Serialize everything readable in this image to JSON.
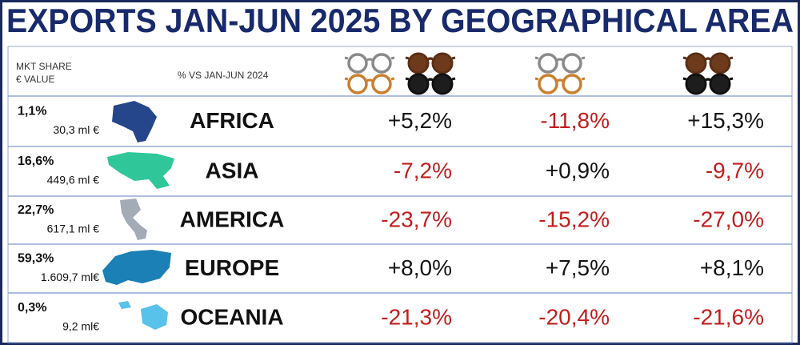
{
  "header": {
    "title": "EXPORTS JAN-JUN 2025 BY GEOGRAPHICAL AREA",
    "share_label": [
      "MKT SHARE",
      "€ VALUE"
    ],
    "change_label": "% VS JAN-JUN 2024"
  },
  "colors": {
    "positive": "#151515",
    "negative": "#c21d1d"
  },
  "rows": [
    {
      "share": "1,1%",
      "value": "30,3 ml €",
      "area": "AFRICA",
      "changes": [
        "+5,2%",
        "-11,8%",
        "+15,3%"
      ]
    },
    {
      "share": "16,6%",
      "value": "449,6 ml €",
      "area": "ASIA",
      "changes": [
        "-7,2%",
        "+0,9%",
        "-9,7%"
      ]
    },
    {
      "share": "22,7%",
      "value": "617,1 ml €",
      "area": "AMERICA",
      "changes": [
        "-23,7%",
        "-15,2%",
        "-27,0%"
      ]
    },
    {
      "share": "59,3%",
      "value": "1.609,7 ml€",
      "area": "EUROPE",
      "changes": [
        "+8,0%",
        "+7,5%",
        "+8,1%"
      ]
    },
    {
      "share": "0,3%",
      "value": "9,2 ml€",
      "area": "OCEANIA",
      "changes": [
        "-21,3%",
        "-20,4%",
        "-21,6%"
      ]
    }
  ]
}
